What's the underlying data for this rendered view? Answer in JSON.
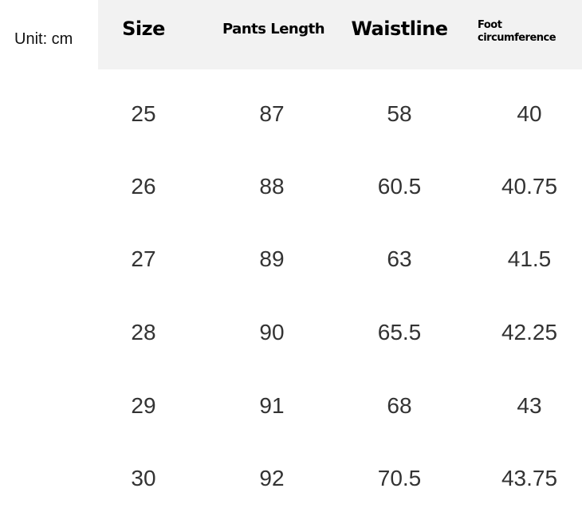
{
  "unit_label": "Unit: cm",
  "headers": [
    "Size",
    "Pants Length",
    "Waistline",
    "Foot circumference"
  ],
  "rows": [
    [
      "25",
      "87",
      "58",
      "40"
    ],
    [
      "26",
      "88",
      "60.5",
      "40.75"
    ],
    [
      "27",
      "89",
      "63",
      "41.5"
    ],
    [
      "28",
      "90",
      "65.5",
      "42.25"
    ],
    [
      "29",
      "91",
      "68",
      "43"
    ],
    [
      "30",
      "92",
      "70.5",
      "43.75"
    ]
  ],
  "colors": {
    "header_background": "#f2f2f2",
    "text": "#333333"
  }
}
